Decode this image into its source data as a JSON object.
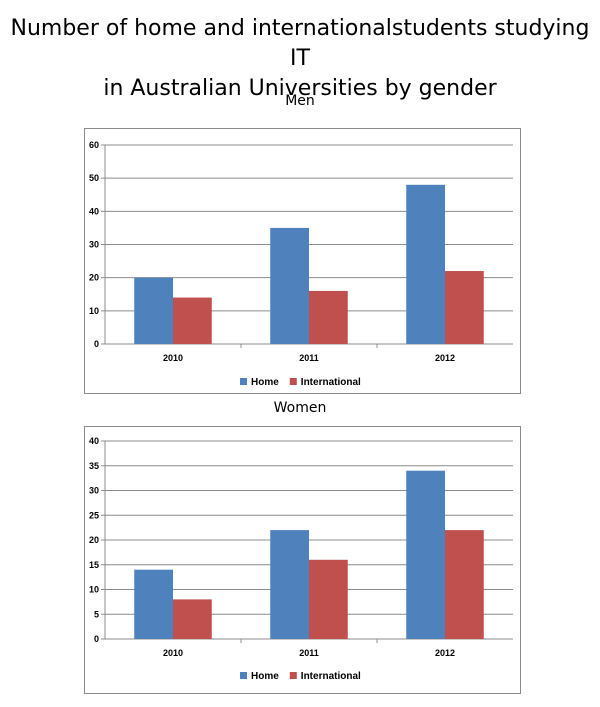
{
  "title_line1": "Number of home and internationalstudents studying IT",
  "title_line2": "in Australian Universities by gender",
  "colors": {
    "home": "#4f81bd",
    "international": "#c0504d"
  },
  "chart_data": [
    {
      "type": "bar",
      "title": "Men",
      "categories": [
        "2010",
        "2011",
        "2012"
      ],
      "series": [
        {
          "name": "Home",
          "values": [
            20,
            35,
            48
          ]
        },
        {
          "name": "International",
          "values": [
            14,
            16,
            22
          ]
        }
      ],
      "ylim": [
        0,
        60
      ],
      "yticks": [
        0,
        10,
        20,
        30,
        40,
        50,
        60
      ],
      "grid": true,
      "legend": "bottom"
    },
    {
      "type": "bar",
      "title": "Women",
      "categories": [
        "2010",
        "2011",
        "2012"
      ],
      "series": [
        {
          "name": "Home",
          "values": [
            14,
            22,
            34
          ]
        },
        {
          "name": "International",
          "values": [
            8,
            16,
            22
          ]
        }
      ],
      "ylim": [
        0,
        40
      ],
      "yticks": [
        0,
        5,
        10,
        15,
        20,
        25,
        30,
        35,
        40
      ],
      "grid": true,
      "legend": "bottom"
    }
  ]
}
